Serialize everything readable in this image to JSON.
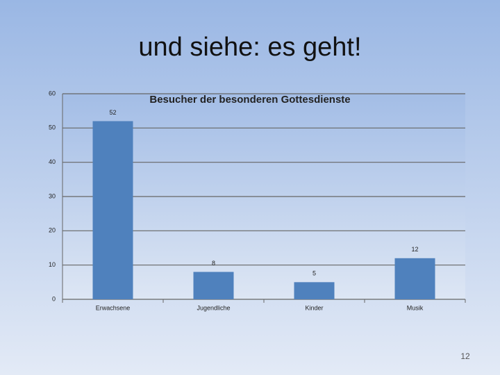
{
  "slide": {
    "title": "und siehe: es geht!",
    "number": "12"
  },
  "chart_data": {
    "type": "bar",
    "title": "Besucher der besonderen Gottesdienste",
    "categories": [
      "Erwachsene",
      "Jugendliche",
      "Kinder",
      "Musik"
    ],
    "values": [
      52,
      8,
      5,
      12
    ],
    "color": "#4f81bd",
    "ylim": [
      0,
      60
    ],
    "yticks": [
      0,
      10,
      20,
      30,
      40,
      50,
      60
    ],
    "grid": true
  }
}
